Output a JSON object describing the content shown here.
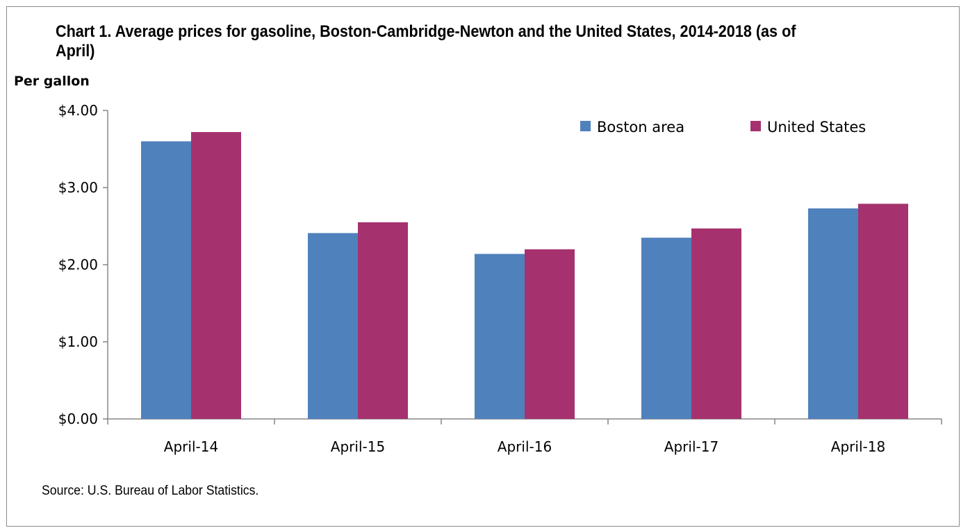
{
  "chart_data": {
    "type": "bar",
    "title": "Chart 1. Average prices for gasoline, Boston-Cambridge-Newton  and the United  States, 2014-2018 (as of April)",
    "ylabel": "Per gallon",
    "xlabel": "",
    "categories": [
      "April-14",
      "April-15",
      "April-16",
      "April-17",
      "April-18"
    ],
    "series": [
      {
        "name": "Boston area",
        "color": "#4f81bd",
        "values": [
          3.6,
          2.41,
          2.14,
          2.35,
          2.73
        ]
      },
      {
        "name": "United States",
        "color": "#a5326e",
        "values": [
          3.72,
          2.55,
          2.2,
          2.47,
          2.79
        ]
      }
    ],
    "ylim": [
      0,
      4
    ],
    "yticks": [
      0,
      1,
      2,
      3,
      4
    ],
    "ytick_labels": [
      "$0.00",
      "$1.00",
      "$2.00",
      "$3.00",
      "$4.00"
    ],
    "grid": false,
    "legend_position": "top-right",
    "source": "Source: U.S. Bureau of Labor Statistics."
  }
}
